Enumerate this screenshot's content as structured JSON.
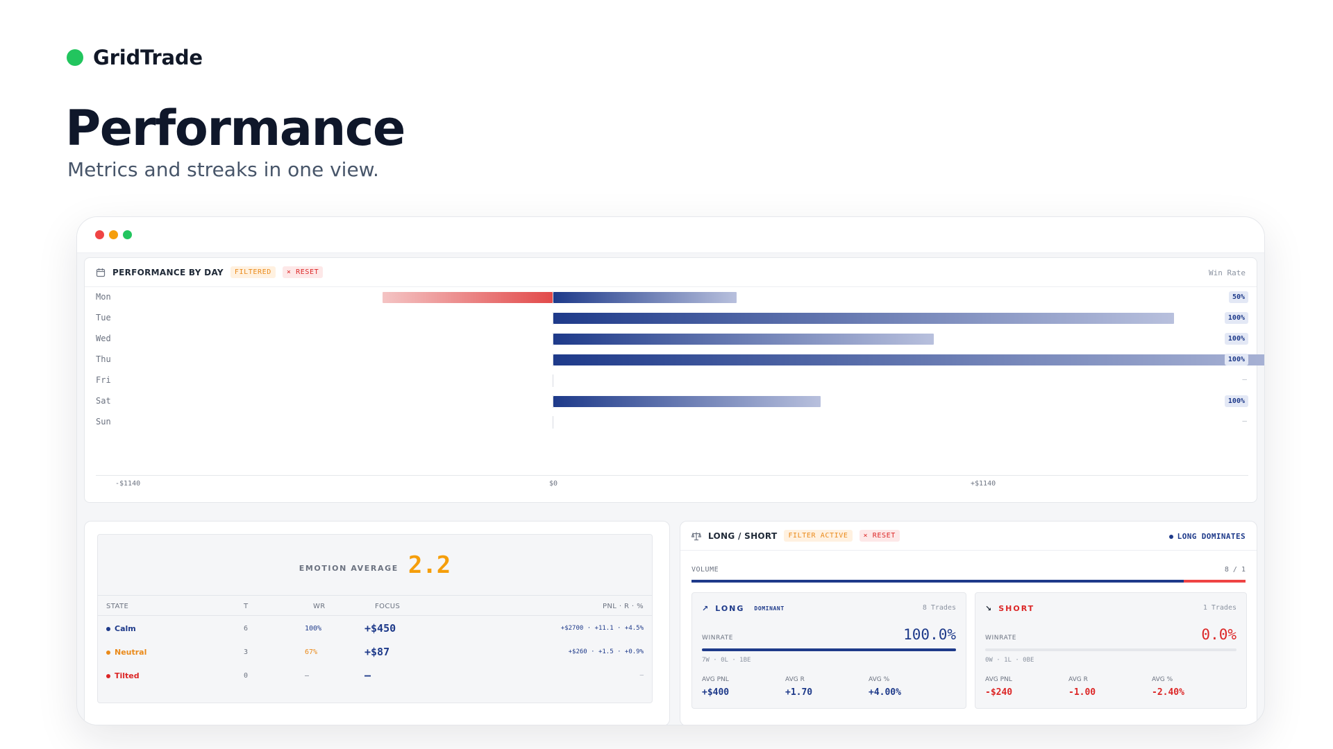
{
  "brand": {
    "name": "GridTrade",
    "dot_color": "#22c55e"
  },
  "hero": {
    "title": "Performance",
    "subtitle": "Metrics and streaks in one view."
  },
  "performance_by_day": {
    "title": "PERFORMANCE BY DAY",
    "filtered_badge": "FILTERED",
    "reset_label": "× RESET",
    "right_label": "Win Rate",
    "axis": {
      "min_label": "-$1140",
      "zero_label": "$0",
      "max_label": "+$1140",
      "min": -1140,
      "max": 1140
    },
    "days": [
      {
        "day": "Mon",
        "pnl_negative": -375,
        "pnl_positive": 405,
        "win_rate": "50%"
      },
      {
        "day": "Tue",
        "pnl_negative": 0,
        "pnl_positive": 1370,
        "win_rate": "100%"
      },
      {
        "day": "Wed",
        "pnl_negative": 0,
        "pnl_positive": 840,
        "win_rate": "100%"
      },
      {
        "day": "Thu",
        "pnl_negative": 0,
        "pnl_positive": 1770,
        "win_rate": "100%"
      },
      {
        "day": "Fri",
        "pnl_negative": 0,
        "pnl_positive": 0,
        "win_rate": "–"
      },
      {
        "day": "Sat",
        "pnl_negative": 0,
        "pnl_positive": 590,
        "win_rate": "100%"
      },
      {
        "day": "Sun",
        "pnl_negative": 0,
        "pnl_positive": 0,
        "win_rate": "–"
      }
    ]
  },
  "emotion": {
    "label": "EMOTION AVERAGE",
    "value": "2.2",
    "columns": {
      "state": "STATE",
      "t": "T",
      "wr": "WR",
      "focus": "FOCUS",
      "pnl": "PNL · R · %"
    },
    "rows": [
      {
        "state": "Calm",
        "color": "#1e3a8a",
        "t": "6",
        "wr": "100%",
        "wr_color": "#1e3a8a",
        "focus": "+$450",
        "pnl": "+$2700 · +11.1 · +4.5%"
      },
      {
        "state": "Neutral",
        "color": "#ea8a1a",
        "t": "3",
        "wr": "67%",
        "wr_color": "#ea8a1a",
        "focus": "+$87",
        "pnl": "+$260 · +1.5 · +0.9%"
      },
      {
        "state": "Tilted",
        "color": "#dc2626",
        "t": "0",
        "wr": "–",
        "wr_color": "#6b7280",
        "focus": "–",
        "pnl": "–"
      }
    ]
  },
  "long_short": {
    "title": "LONG / SHORT",
    "filter_badge": "FILTER ACTIVE",
    "reset_label": "× RESET",
    "dominates": "LONG DOMINATES",
    "volume_label": "VOLUME",
    "volume_ratio": "8 / 1",
    "long_share": 0.889,
    "long": {
      "title": "LONG",
      "dominant": "DOMINANT",
      "trades": "8 Trades",
      "winrate_label": "WINRATE",
      "winrate": "100.0%",
      "winrate_value": 1.0,
      "wld": "7W · 0L · 1BE",
      "stats": [
        {
          "label": "AVG PNL",
          "value": "+$400"
        },
        {
          "label": "AVG R",
          "value": "+1.70"
        },
        {
          "label": "AVG %",
          "value": "+4.00%"
        }
      ]
    },
    "short": {
      "title": "SHORT",
      "trades": "1 Trades",
      "winrate_label": "WINRATE",
      "winrate": "0.0%",
      "winrate_value": 0.0,
      "wld": "0W · 1L · 0BE",
      "stats": [
        {
          "label": "AVG PNL",
          "value": "-$240"
        },
        {
          "label": "AVG R",
          "value": "-1.00"
        },
        {
          "label": "AVG %",
          "value": "-2.40%"
        }
      ]
    }
  }
}
